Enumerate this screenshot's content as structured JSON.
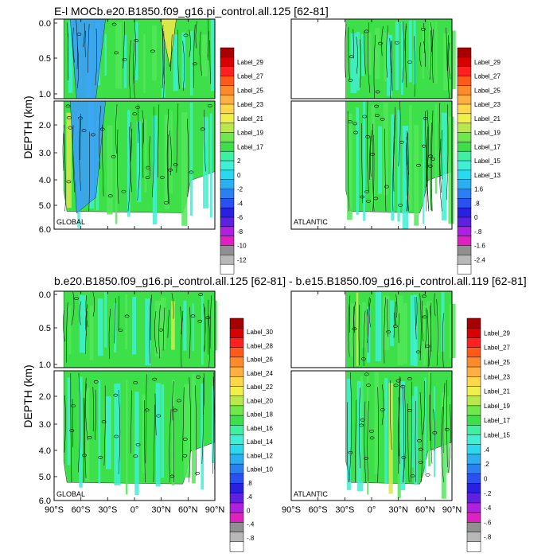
{
  "panels": {
    "top": {
      "title": "E-l MOCb.e20.B1850.f09_g16.pi_control.all.125 [62-81]",
      "ylabel": "DEPTH (km)",
      "left_region": "GLOBAL",
      "right_region": "ATLANTIC",
      "left_colorbar": [
        "Label_29",
        "Label_27",
        "Label_25",
        "Label_23",
        "Label_21",
        "Label_19",
        "Label_17",
        "2",
        "0",
        "-2",
        "-4",
        "-6",
        "-8",
        "-10",
        "-12"
      ],
      "right_colorbar": [
        "Label_29",
        "Label_27",
        "Label_25",
        "Label_23",
        "Label_21",
        "Label_19",
        "Label_17",
        "Label_15",
        "Label_13",
        "1.6",
        ".8",
        "0",
        "-.8",
        "-1.6",
        "-2.4"
      ]
    },
    "bottom": {
      "title": "b.e20.B1850.f09_g16.pi_control.all.125 [62-81] - b.e15.B1850.f09_g16.pi_control.all.119 [62-81]",
      "ylabel": "DEPTH (km)",
      "left_region": "GLOBAL",
      "right_region": "ATLANTIC",
      "left_colorbar": [
        "Label_30",
        "Label_28",
        "Label_26",
        "Label_24",
        "Label_22",
        "Label_20",
        "Label_18",
        "Label_16",
        "Label_14",
        "Label_12",
        "Label_10",
        ".8",
        ".4",
        "0",
        "-.4",
        "-.8"
      ],
      "right_colorbar": [
        "Label_29",
        "Label_27",
        "Label_25",
        "Label_23",
        "Label_21",
        "Label_19",
        "Label_17",
        "Label_15",
        ".4",
        ".2",
        "0",
        "-.2",
        "-.4",
        "-.6",
        "-.8"
      ]
    }
  },
  "chart_data": {
    "type": "heatmap",
    "x_ticks": [
      "90°S",
      "60°S",
      "30°S",
      "0°",
      "30°N",
      "60°N",
      "90°N"
    ],
    "y_ticks_upper": [
      "0.0",
      "0.5",
      "1.0"
    ],
    "y_ticks_lower": [
      "2.0",
      "3.0",
      "4.0",
      "5.0",
      "6.0"
    ],
    "xlim": [
      -90,
      90
    ],
    "ylim": [
      6.0,
      0.0
    ],
    "colors": {
      "fill_main": "#3ee04a",
      "fill_cyan": "#3ff0d4",
      "fill_blue": "#3a9cff",
      "fill_yellow": "#d8e84a",
      "colorbar_top_to_bottom": [
        "#a80000",
        "#d80000",
        "#ff2020",
        "#ff5a1a",
        "#ff8a2a",
        "#ffb040",
        "#ffd84a",
        "#f0f04a",
        "#b8e84a",
        "#6ee84a",
        "#3ee04a",
        "#3ff0a0",
        "#3ff0d4",
        "#2ad8f0",
        "#2ab0f0",
        "#2a80f0",
        "#2a50f0",
        "#2a20e0",
        "#6020e0",
        "#b020e0",
        "#e020c0",
        "#909090",
        "#b8b8b8",
        "#ffffff"
      ]
    }
  }
}
